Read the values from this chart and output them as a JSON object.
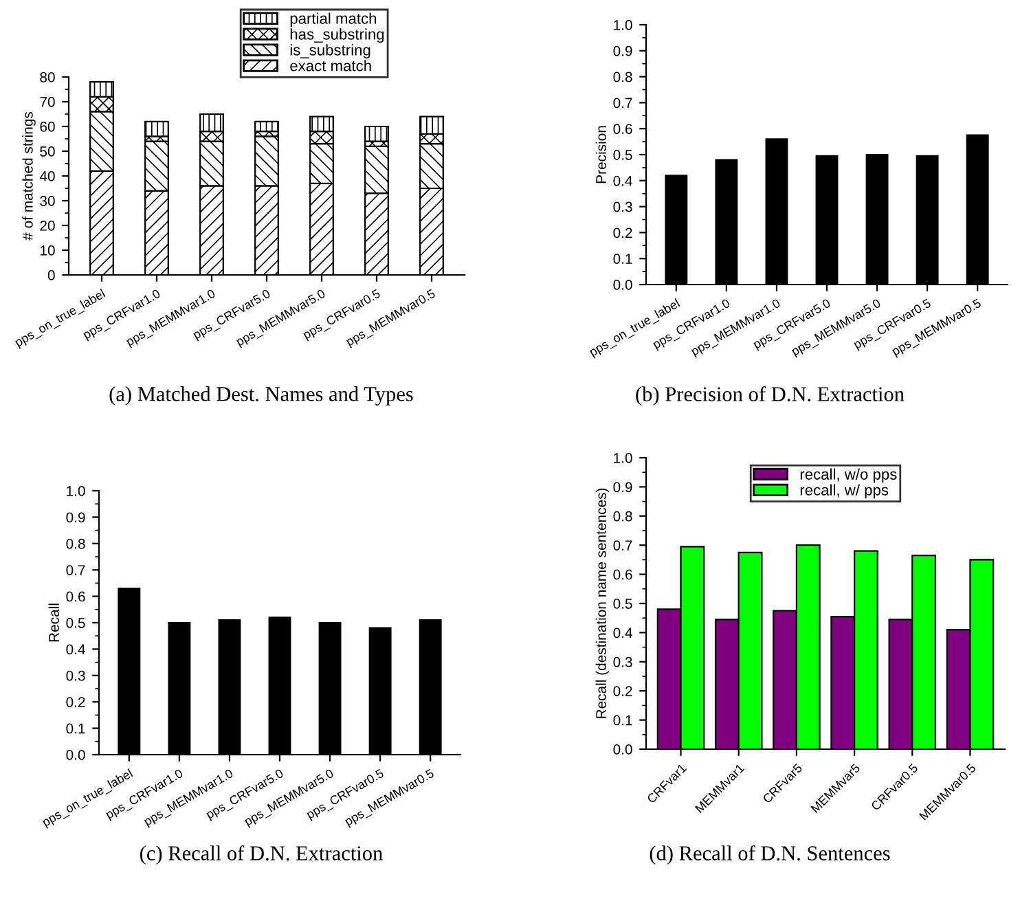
{
  "chart_data": [
    {
      "type": "bar",
      "title": "(a) Matched Dest. Names and Types",
      "ylabel": "# of matched strings",
      "stacked": true,
      "legend": "top",
      "grid": false,
      "categories": [
        "pps_on_true_label",
        "pps_CRFvar1.0",
        "pps_MEMMvar1.0",
        "pps_CRFvar5.0",
        "pps_MEMMvar5.0",
        "pps_CRFvar0.5",
        "pps_MEMMvar0.5"
      ],
      "series": [
        {
          "name": "exact match",
          "color": "#000000",
          "values": [
            42,
            34,
            36,
            36,
            37,
            33,
            35
          ]
        },
        {
          "name": "is_substring",
          "color": "#000000",
          "values": [
            24,
            20,
            18,
            20,
            16,
            19,
            18
          ]
        },
        {
          "name": "has_substring",
          "color": "#000000",
          "values": [
            6,
            2,
            4,
            2,
            5,
            2,
            4
          ]
        },
        {
          "name": "partial match",
          "color": "#000000",
          "values": [
            6,
            6,
            7,
            4,
            6,
            6,
            7
          ]
        }
      ],
      "ylim": [
        0,
        80
      ],
      "yticks": [
        0,
        10,
        20,
        30,
        40,
        50,
        60,
        70,
        80
      ]
    },
    {
      "type": "bar",
      "title": "(b) Precision of D.N. Extraction",
      "ylabel": "Precision",
      "grid": false,
      "legend": false,
      "categories": [
        "pps_on_true_label",
        "pps_CRFvar1.0",
        "pps_MEMMvar1.0",
        "pps_CRFvar5.0",
        "pps_MEMMvar5.0",
        "pps_CRFvar0.5",
        "pps_MEMMvar0.5"
      ],
      "series": [
        {
          "color": "#000000",
          "values": [
            0.42,
            0.48,
            0.56,
            0.495,
            0.5,
            0.495,
            0.575
          ]
        }
      ],
      "ylim": [
        0,
        1
      ],
      "yticks": [
        {
          "value": 0,
          "label": "0.0"
        },
        {
          "value": 0.1,
          "label": "0.1"
        },
        {
          "value": 0.2,
          "label": "0.2"
        },
        {
          "value": 0.3,
          "label": "0.3"
        },
        {
          "value": 0.4,
          "label": "0.4"
        },
        {
          "value": 0.5,
          "label": "0.5"
        },
        {
          "value": 0.6,
          "label": "0.6"
        },
        {
          "value": 0.7,
          "label": "0.7"
        },
        {
          "value": 0.8,
          "label": "0.8"
        },
        {
          "value": 0.9,
          "label": "0.9"
        },
        {
          "value": 1,
          "label": "1.0"
        }
      ]
    },
    {
      "type": "bar",
      "title": "(c) Recall of D.N. Extraction",
      "ylabel": "Recall",
      "grid": false,
      "legend": false,
      "categories": [
        "pps_on_true_label",
        "pps_CRFvar1.0",
        "pps_MEMMvar1.0",
        "pps_CRFvar5.0",
        "pps_MEMMvar5.0",
        "pps_CRFvar0.5",
        "pps_MEMMvar0.5"
      ],
      "series": [
        {
          "color": "#000000",
          "values": [
            0.63,
            0.5,
            0.51,
            0.52,
            0.5,
            0.48,
            0.51
          ]
        }
      ],
      "ylim": [
        0,
        1
      ],
      "yticks": [
        {
          "value": 0,
          "label": "0.0"
        },
        {
          "value": 0.1,
          "label": "0.1"
        },
        {
          "value": 0.2,
          "label": "0.2"
        },
        {
          "value": 0.3,
          "label": "0.3"
        },
        {
          "value": 0.4,
          "label": "0.4"
        },
        {
          "value": 0.5,
          "label": "0.5"
        },
        {
          "value": 0.6,
          "label": "0.6"
        },
        {
          "value": 0.7,
          "label": "0.7"
        },
        {
          "value": 0.8,
          "label": "0.8"
        },
        {
          "value": 0.9,
          "label": "0.9"
        },
        {
          "value": 1,
          "label": "1.0"
        }
      ]
    },
    {
      "type": "bar",
      "title": "(d) Recall of D.N. Sentences",
      "ylabel": "Recall (destination name sentences)",
      "grid": false,
      "legend": "top",
      "categories": [
        "CRFvar1",
        "MEMMvar1",
        "CRFvar5",
        "MEMMvar5",
        "CRFvar0.5",
        "MEMMvar0.5"
      ],
      "series": [
        {
          "name": "recall, w/o pps",
          "color": "#800080",
          "values": [
            0.48,
            0.445,
            0.475,
            0.455,
            0.445,
            0.41
          ]
        },
        {
          "name": "recall, w/ pps",
          "color": "#00ff00",
          "values": [
            0.695,
            0.675,
            0.7,
            0.68,
            0.665,
            0.65
          ]
        }
      ],
      "ylim": [
        0,
        1
      ],
      "yticks": [
        {
          "value": 0,
          "label": "0.0"
        },
        {
          "value": 0.1,
          "label": "0.1"
        },
        {
          "value": 0.2,
          "label": "0.2"
        },
        {
          "value": 0.3,
          "label": "0.3"
        },
        {
          "value": 0.4,
          "label": "0.4"
        },
        {
          "value": 0.5,
          "label": "0.5"
        },
        {
          "value": 0.6,
          "label": "0.6"
        },
        {
          "value": 0.7,
          "label": "0.7"
        },
        {
          "value": 0.8,
          "label": "0.8"
        },
        {
          "value": 0.9,
          "label": "0.9"
        },
        {
          "value": 1,
          "label": "1.0"
        }
      ]
    }
  ]
}
